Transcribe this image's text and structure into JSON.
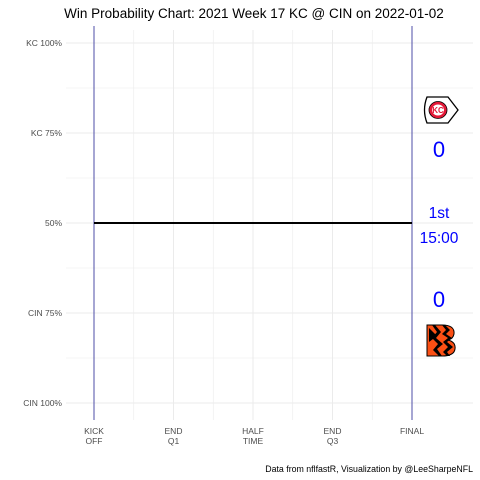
{
  "chart_data": {
    "type": "line",
    "title": "Win Probability Chart: 2021 Week 17 KC @ CIN on 2022-01-02",
    "caption": "Data from nflfastR, Visualization by @LeeSharpeNFL",
    "y_tick_labels": [
      "KC 100%",
      "KC 75%",
      "50%",
      "CIN 75%",
      "CIN 100%"
    ],
    "x_tick_labels": [
      [
        "KICK",
        "OFF"
      ],
      [
        "END",
        "Q1"
      ],
      [
        "HALF",
        "TIME"
      ],
      [
        "END",
        "Q3"
      ],
      [
        "FINAL"
      ]
    ],
    "x_ticks_minutes": [
      0,
      15,
      30,
      45,
      60
    ],
    "xlim": [
      0,
      60
    ],
    "ylim": [
      0,
      1
    ],
    "grid": true,
    "series": [
      {
        "x": [
          0,
          60
        ],
        "y": [
          0.5,
          0.5
        ]
      }
    ],
    "home_team": "CIN",
    "away_team": "KC",
    "away_score": "0",
    "home_score": "0",
    "period": "1st",
    "clock": "15:00",
    "colors": {
      "line": "#000000",
      "vlines": "#3c3ca0",
      "grid": "#ebebeb",
      "score_text": "#0000ff",
      "kc_red": "#e31837",
      "cin_orange": "#fb4f14"
    },
    "logos": [
      "kc-chiefs-logo",
      "cin-bengals-logo"
    ]
  }
}
